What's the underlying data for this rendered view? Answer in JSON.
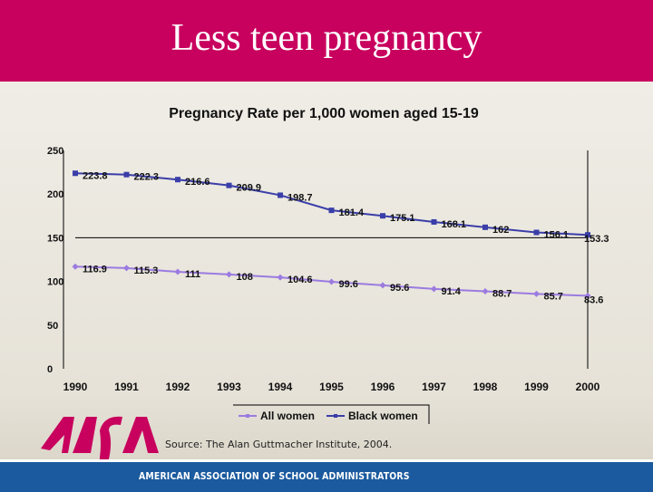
{
  "slide": {
    "title": "Less teen pregnancy",
    "source": "Source: The Alan Guttmacher Institute, 2004.",
    "organization": "AMERICAN ASSOCIATION OF SCHOOL ADMINISTRATORS",
    "logo_text": "AASA",
    "header_color": "#c8005e",
    "footer_color": "#1b5a9e"
  },
  "chart_data": {
    "type": "line",
    "title": "Pregnancy Rate per 1,000 women aged 15-19",
    "x": [
      "1990",
      "1991",
      "1992",
      "1993",
      "1994",
      "1995",
      "1996",
      "1997",
      "1998",
      "1999",
      "2000"
    ],
    "ylim": [
      0,
      250
    ],
    "yticks": [
      0,
      50,
      100,
      150,
      200,
      250
    ],
    "grid": "horizontal at 150",
    "legend": "bottom",
    "series": [
      {
        "name": "All women",
        "color": "#9b7be0",
        "marker": "diamond",
        "values": [
          116.9,
          115.3,
          111,
          108,
          104.6,
          99.6,
          95.6,
          91.4,
          88.7,
          85.7,
          83.6
        ]
      },
      {
        "name": "Black women",
        "color": "#3a3ea8",
        "marker": "square",
        "values": [
          223.8,
          222.3,
          216.6,
          209.9,
          198.7,
          181.4,
          175.1,
          168.1,
          162,
          156.1,
          153.3
        ]
      }
    ]
  }
}
